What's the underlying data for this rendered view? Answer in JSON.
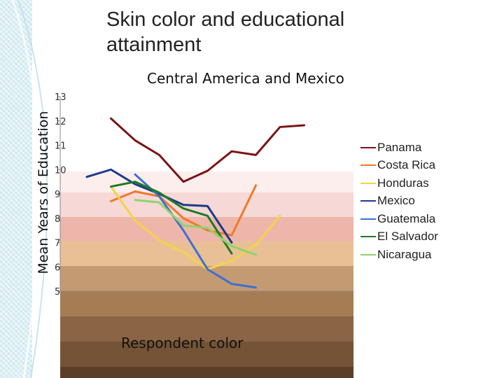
{
  "slide": {
    "title": "Skin color and educational attainment"
  },
  "chart_data": {
    "type": "line",
    "title": "Central America and Mexico",
    "ylabel": "Mean Years of Education",
    "xlabel": "Respondent color",
    "ylim": [
      5,
      13
    ],
    "yticks": [
      "13",
      "12",
      "11",
      "10",
      "9",
      "8",
      "7",
      "6",
      "5"
    ],
    "x": [
      1,
      2,
      3,
      4,
      5,
      6,
      7,
      8,
      9,
      10,
      11
    ],
    "grid": false,
    "legend_position": "right",
    "background_bands": [
      "#fdeeee",
      "#f6d8d6",
      "#eeb6aa",
      "#e9c096",
      "#c49a72",
      "#a67c55",
      "#8b6445",
      "#745336",
      "#5a3e28"
    ],
    "series": [
      {
        "name": "Panama",
        "color": "#7b1414",
        "values": [
          null,
          12.1,
          11.2,
          10.6,
          9.5,
          9.95,
          10.75,
          10.6,
          11.75,
          11.82,
          null
        ]
      },
      {
        "name": "Costa Rica",
        "color": "#ee7a2c",
        "values": [
          null,
          8.7,
          9.1,
          8.9,
          8.0,
          7.5,
          7.3,
          9.35,
          null,
          null,
          null
        ]
      },
      {
        "name": "Honduras",
        "color": "#f5d24a",
        "values": [
          null,
          9.3,
          7.9,
          7.1,
          6.6,
          5.9,
          6.25,
          6.9,
          8.1,
          null,
          null
        ]
      },
      {
        "name": "Mexico",
        "color": "#1c3a8c",
        "values": [
          9.7,
          10.0,
          9.4,
          9.0,
          8.55,
          8.5,
          7.0,
          null,
          null,
          null,
          null
        ]
      },
      {
        "name": "Guatemala",
        "color": "#3d6fd1",
        "values": [
          null,
          null,
          9.8,
          8.9,
          7.5,
          5.9,
          5.3,
          5.15,
          null,
          null,
          null
        ]
      },
      {
        "name": "El Salvador",
        "color": "#1e7a22",
        "values": [
          null,
          9.3,
          9.5,
          9.05,
          8.4,
          8.1,
          6.55,
          null,
          null,
          null,
          null
        ]
      },
      {
        "name": "Nicaragua",
        "color": "#8ed36b",
        "values": [
          null,
          null,
          8.75,
          8.65,
          7.7,
          7.6,
          6.85,
          6.5,
          null,
          null,
          null
        ]
      }
    ]
  }
}
